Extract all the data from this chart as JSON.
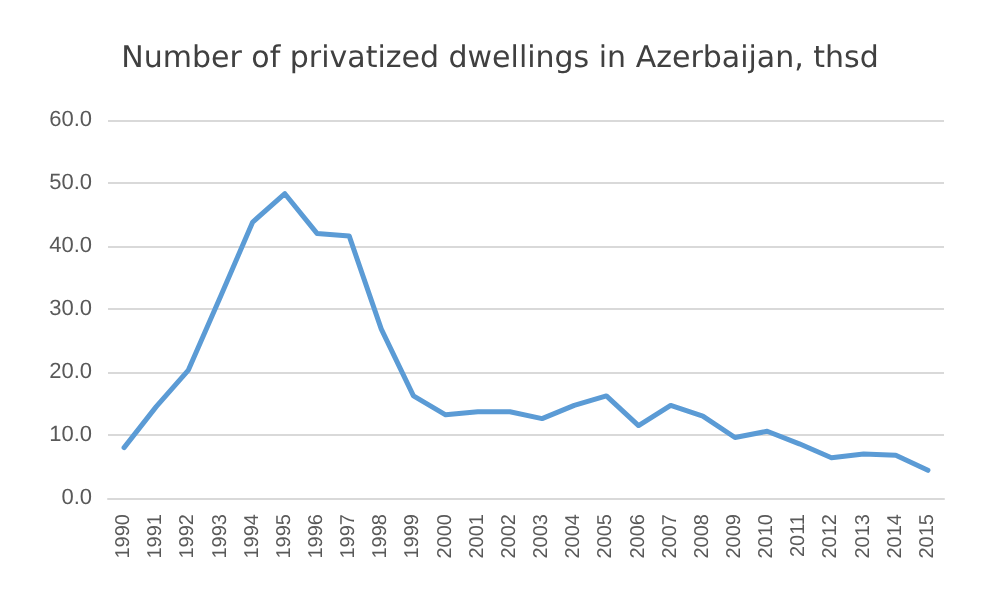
{
  "chart_data": {
    "type": "line",
    "title": "Number of privatized dwellings in Azerbaijan, thsd",
    "categories": [
      "1990",
      "1991",
      "1992",
      "1993",
      "1994",
      "1995",
      "1996",
      "1997",
      "1998",
      "1999",
      "2000",
      "2001",
      "2002",
      "2003",
      "2004",
      "2005",
      "2006",
      "2007",
      "2008",
      "2009",
      "2010",
      "2011",
      "2012",
      "2013",
      "2014",
      "2015"
    ],
    "series": [
      {
        "color": "#5b9bd5",
        "values": [
          8.0,
          14.5,
          20.3,
          32,
          43.8,
          48.3,
          42,
          41.6,
          26.8,
          16.2,
          13.2,
          13.7,
          13.7,
          12.6,
          14.7,
          16.2,
          11.5,
          14.7,
          13,
          9.6,
          10.6,
          8.6,
          6.4,
          7,
          6.8,
          4.4
        ]
      }
    ],
    "ylim": [
      0,
      60
    ],
    "yticks": [
      {
        "value": 0,
        "label": "0.0"
      },
      {
        "value": 10,
        "label": "10.0"
      },
      {
        "value": 20,
        "label": "20.0"
      },
      {
        "value": 30,
        "label": "30.0"
      },
      {
        "value": 40,
        "label": "40.0"
      },
      {
        "value": 50,
        "label": "50.0"
      },
      {
        "value": 60,
        "label": "60.0"
      }
    ],
    "grid": "y",
    "marker": "none",
    "line_style": "solid"
  }
}
